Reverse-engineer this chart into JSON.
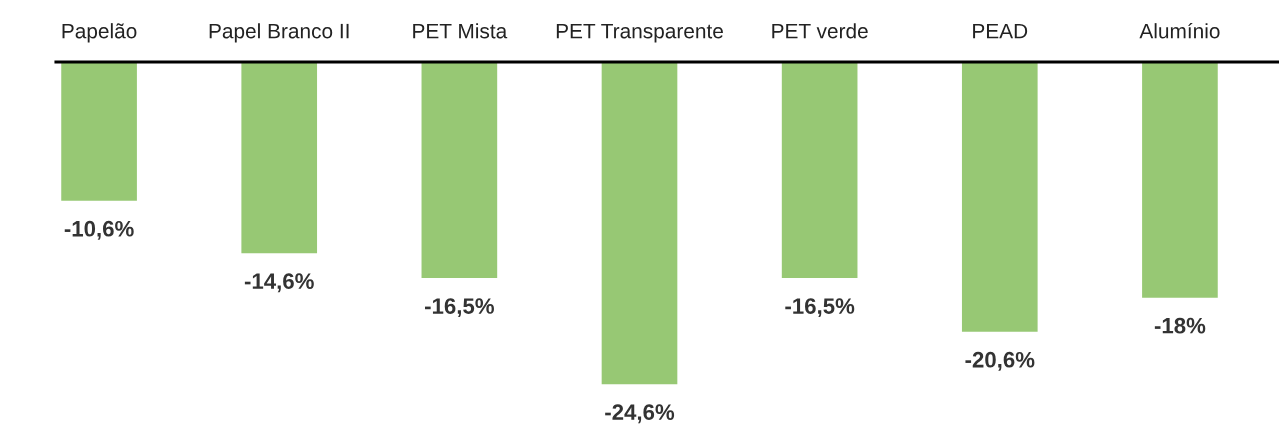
{
  "chart_data": {
    "type": "bar",
    "categories": [
      "Papelão",
      "Papel Branco II",
      "PET Mista",
      "PET Transparente",
      "PET verde",
      "PEAD",
      "Alumínio"
    ],
    "values": [
      -10.6,
      -14.6,
      -16.5,
      -24.6,
      -16.5,
      -20.6,
      -18
    ],
    "value_labels": [
      "-10,6%",
      "-14,6%",
      "-16,5%",
      "-24,6%",
      "-16,5%",
      "-20,6%",
      "-18%"
    ],
    "color": "#97c874",
    "grid": false,
    "legend": false
  }
}
